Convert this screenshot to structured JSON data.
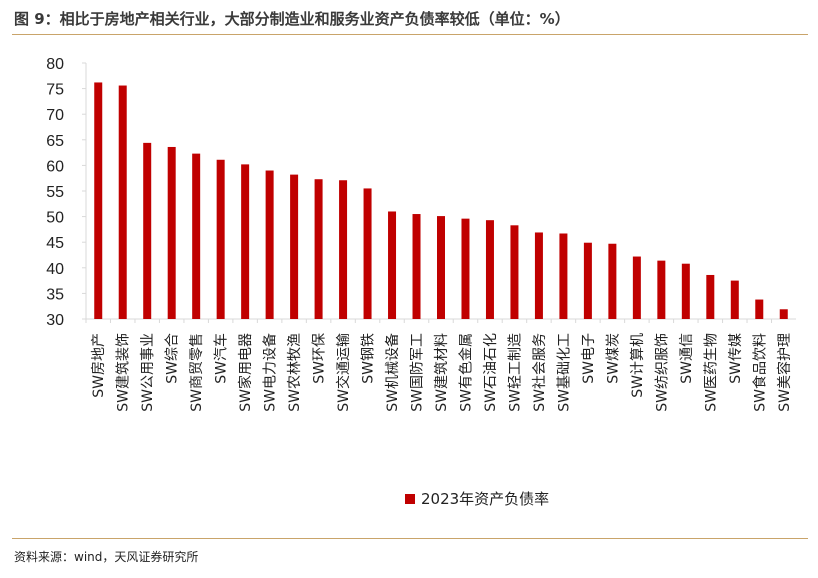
{
  "figure": {
    "title": "图 9：相比于房地产相关行业，大部分制造业和服务业资产负债率较低（单位：%）",
    "source": "资料来源：wind，天风证券研究所"
  },
  "colors": {
    "bar": "#c00000",
    "rule": "#c9a46a",
    "axis": "#d9d9d9"
  },
  "chart_data": {
    "type": "bar",
    "categories": [
      "SW房地产",
      "SW建筑装饰",
      "SW公用事业",
      "SW综合",
      "SW商贸零售",
      "SW汽车",
      "SW家用电器",
      "SW电力设备",
      "SW农林牧渔",
      "SW环保",
      "SW交通运输",
      "SW钢铁",
      "SW机械设备",
      "SW国防军工",
      "SW建筑材料",
      "SW有色金属",
      "SW石油石化",
      "SW轻工制造",
      "SW社会服务",
      "SW基础化工",
      "SW电子",
      "SW煤炭",
      "SW计算机",
      "SW纺织服饰",
      "SW通信",
      "SW医药生物",
      "SW传媒",
      "SW食品饮料",
      "SW美容护理"
    ],
    "series": [
      {
        "name": "2023年资产负债率",
        "values": [
          76.2,
          75.6,
          64.4,
          63.6,
          62.3,
          61.1,
          60.2,
          59.0,
          58.2,
          57.3,
          57.1,
          55.5,
          51.0,
          50.5,
          50.1,
          49.6,
          49.3,
          48.3,
          46.9,
          46.7,
          44.9,
          44.7,
          42.2,
          41.4,
          40.8,
          38.6,
          37.5,
          33.8,
          31.9
        ]
      }
    ],
    "ylim": [
      30,
      80
    ],
    "yticks": [
      30,
      35,
      40,
      45,
      50,
      55,
      60,
      65,
      70,
      75,
      80
    ],
    "xlabel": "",
    "ylabel": "",
    "grid": false,
    "legend": "bottom"
  }
}
